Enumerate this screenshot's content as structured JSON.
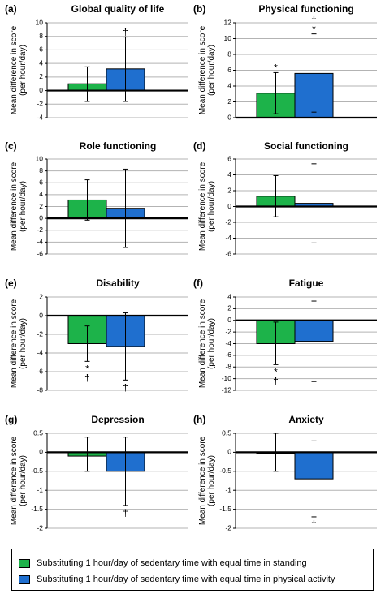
{
  "chart_data": [
    {
      "type": "bar",
      "panel_label": "(a)",
      "title": "Global quality of life",
      "ylabel": "Mean difference in score (per hour/day)",
      "ylim": [
        -4,
        10
      ],
      "yticks": [
        -4,
        -2,
        0,
        2,
        4,
        6,
        8,
        10
      ],
      "series": [
        {
          "name": "Substituting 1 hour/day of sedentary time with equal time in standing",
          "value": 1.0,
          "ci": [
            -1.6,
            3.5
          ],
          "marks": ""
        },
        {
          "name": "Substituting 1 hour/day of sedentary time with equal time in physical activity",
          "value": 3.2,
          "ci": [
            -1.6,
            7.9
          ],
          "marks": "†"
        }
      ]
    },
    {
      "type": "bar",
      "panel_label": "(b)",
      "title": "Physical functioning",
      "ylabel": "Mean difference in score (per hour/day)",
      "ylim": [
        0,
        12
      ],
      "yticks": [
        0,
        2,
        4,
        6,
        8,
        10,
        12
      ],
      "series": [
        {
          "name": "Substituting 1 hour/day of sedentary time with equal time in standing",
          "value": 3.1,
          "ci": [
            0.5,
            5.7
          ],
          "marks": "*"
        },
        {
          "name": "Substituting 1 hour/day of sedentary time with equal time in physical activity",
          "value": 5.6,
          "ci": [
            0.7,
            10.6
          ],
          "marks": "†*"
        }
      ]
    },
    {
      "type": "bar",
      "panel_label": "(c)",
      "title": "Role functioning",
      "ylabel": "Mean difference in score (per hour/day)",
      "ylim": [
        -6,
        10
      ],
      "yticks": [
        -6,
        -4,
        -2,
        0,
        2,
        4,
        6,
        8,
        10
      ],
      "series": [
        {
          "name": "Substituting 1 hour/day of sedentary time with equal time in standing",
          "value": 3.1,
          "ci": [
            -0.3,
            6.5
          ],
          "marks": ""
        },
        {
          "name": "Substituting 1 hour/day of sedentary time with equal time in physical activity",
          "value": 1.7,
          "ci": [
            -4.9,
            8.3
          ],
          "marks": ""
        }
      ]
    },
    {
      "type": "bar",
      "panel_label": "(d)",
      "title": "Social functioning",
      "ylabel": "Mean difference in score (per hour/day)",
      "ylim": [
        -6,
        6
      ],
      "yticks": [
        -6,
        -4,
        -2,
        0,
        2,
        4,
        6
      ],
      "series": [
        {
          "name": "Substituting 1 hour/day of sedentary time with equal time in standing",
          "value": 1.3,
          "ci": [
            -1.3,
            3.9
          ],
          "marks": ""
        },
        {
          "name": "Substituting 1 hour/day of sedentary time with equal time in physical activity",
          "value": 0.4,
          "ci": [
            -4.6,
            5.4
          ],
          "marks": ""
        }
      ]
    },
    {
      "type": "bar",
      "panel_label": "(e)",
      "title": "Disability",
      "ylabel": "Mean difference in score (per hour/day)",
      "ylim": [
        -8,
        2
      ],
      "yticks": [
        -8,
        -6,
        -4,
        -2,
        0,
        2
      ],
      "series": [
        {
          "name": "Substituting 1 hour/day of sedentary time with equal time in standing",
          "value": -3.0,
          "ci": [
            -4.9,
            -1.1
          ],
          "marks": "*†"
        },
        {
          "name": "Substituting 1 hour/day of sedentary time with equal time in physical activity",
          "value": -3.3,
          "ci": [
            -6.9,
            0.3
          ],
          "marks": "†"
        }
      ]
    },
    {
      "type": "bar",
      "panel_label": "(f)",
      "title": "Fatigue",
      "ylabel": "Mean difference in score (per hour/day)",
      "ylim": [
        -12,
        4
      ],
      "yticks": [
        -12,
        -10,
        -8,
        -6,
        -4,
        -2,
        0,
        2,
        4
      ],
      "series": [
        {
          "name": "Substituting 1 hour/day of sedentary time with equal time in standing",
          "value": -4.0,
          "ci": [
            -7.6,
            -0.3
          ],
          "marks": "*†"
        },
        {
          "name": "Substituting 1 hour/day of sedentary time with equal time in physical activity",
          "value": -3.6,
          "ci": [
            -10.5,
            3.3
          ],
          "marks": ""
        }
      ]
    },
    {
      "type": "bar",
      "panel_label": "(g)",
      "title": "Depression",
      "ylabel": "Mean difference in score (per hour/day)",
      "ylim": [
        -2,
        0.5
      ],
      "yticks": [
        -2,
        -1.5,
        -1,
        -0.5,
        0,
        0.5
      ],
      "series": [
        {
          "name": "Substituting 1 hour/day of sedentary time with equal time in standing",
          "value": -0.1,
          "ci": [
            -0.5,
            0.4
          ],
          "marks": ""
        },
        {
          "name": "Substituting 1 hour/day of sedentary time with equal time in physical activity",
          "value": -0.5,
          "ci": [
            -1.4,
            0.4
          ],
          "marks": "†"
        }
      ]
    },
    {
      "type": "bar",
      "panel_label": "(h)",
      "title": "Anxiety",
      "ylabel": "Mean difference in score (per hour/day)",
      "ylim": [
        -2,
        0.5
      ],
      "yticks": [
        -2,
        -1.5,
        -1,
        -0.5,
        0,
        0.5
      ],
      "series": [
        {
          "name": "Substituting 1 hour/day of sedentary time with equal time in standing",
          "value": -0.03,
          "ci": [
            -0.5,
            0.5
          ],
          "marks": ""
        },
        {
          "name": "Substituting 1 hour/day of sedentary time with equal time in physical activity",
          "value": -0.7,
          "ci": [
            -1.7,
            0.3
          ],
          "marks": "†"
        }
      ]
    }
  ],
  "legend": {
    "items": [
      {
        "label": "Substituting 1 hour/day of sedentary time with equal time in standing",
        "color": "#1db34a"
      },
      {
        "label": "Substituting 1 hour/day of sedentary time with equal time in physical activity",
        "color": "#1f6fcf"
      }
    ]
  },
  "ylabel_lines": [
    "Mean difference in score",
    "(per hour/day)"
  ],
  "grid": true,
  "series_colors": [
    "#1db34a",
    "#1f6fcf"
  ]
}
